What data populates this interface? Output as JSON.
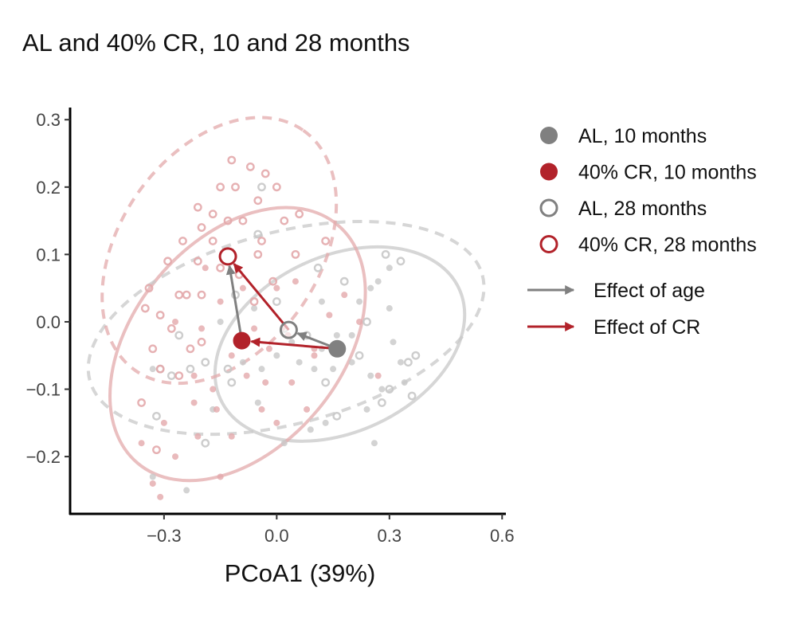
{
  "chart_data": {
    "type": "scatter",
    "title": "AL and 40% CR, 10 and 28 months",
    "xlabel": "PCoA1 (39%)",
    "ylabel": "",
    "xlim": [
      -0.55,
      0.61
    ],
    "ylim": [
      -0.285,
      0.318
    ],
    "xticks": [
      -0.3,
      0.0,
      0.3,
      0.6
    ],
    "xtick_labels": [
      "−0.3",
      "0.0",
      "0.3",
      "0.6"
    ],
    "yticks": [
      0.3,
      0.2,
      0.1,
      0.0,
      -0.1,
      -0.2
    ],
    "ytick_labels": [
      "0.3",
      "0.2",
      "0.1",
      "0.0",
      "−0.1",
      "−0.2"
    ],
    "grid": false,
    "legend_position": "right",
    "colors": {
      "AL": "#808080",
      "CR": "#b2222a"
    },
    "series": [
      {
        "name": "AL, 10 months",
        "group": "AL",
        "filled": true,
        "centroid": [
          0.161,
          -0.04
        ],
        "ellipse": {
          "center": [
            0.168,
            -0.033
          ],
          "a": 0.35,
          "b": 0.234,
          "angle": -25,
          "dashed": false
        },
        "points": [
          [
            0.12,
            -0.04
          ],
          [
            0.16,
            -0.02
          ],
          [
            0.2,
            -0.02
          ],
          [
            0.22,
            0.03
          ],
          [
            0.25,
            0.05
          ],
          [
            0.27,
            0.06
          ],
          [
            0.3,
            0.02
          ],
          [
            0.31,
            -0.03
          ],
          [
            0.33,
            -0.06
          ],
          [
            0.34,
            -0.09
          ],
          [
            0.28,
            -0.1
          ],
          [
            0.25,
            -0.08
          ],
          [
            0.2,
            -0.06
          ],
          [
            0.15,
            -0.07
          ],
          [
            0.1,
            -0.07
          ],
          [
            0.06,
            -0.06
          ],
          [
            0.04,
            -0.03
          ],
          [
            0.0,
            -0.05
          ],
          [
            -0.04,
            -0.07
          ],
          [
            -0.09,
            -0.06
          ],
          [
            -0.15,
            0.0
          ],
          [
            0.13,
            -0.15
          ],
          [
            0.09,
            -0.16
          ],
          [
            0.02,
            -0.18
          ],
          [
            -0.05,
            -0.12
          ],
          [
            -0.17,
            -0.13
          ],
          [
            -0.33,
            -0.23
          ],
          [
            -0.24,
            -0.25
          ],
          [
            0.26,
            -0.18
          ],
          [
            0.3,
            0.08
          ],
          [
            0.24,
            -0.13
          ],
          [
            -0.06,
            0.02
          ],
          [
            -0.33,
            -0.07
          ],
          [
            0.12,
            0.03
          ]
        ]
      },
      {
        "name": "40% CR, 10 months",
        "group": "CR",
        "filled": true,
        "centroid": [
          -0.093,
          -0.028
        ],
        "ellipse": {
          "center": [
            -0.104,
            -0.033
          ],
          "a": 0.414,
          "b": 0.276,
          "angle": -50,
          "dashed": false
        },
        "points": [
          [
            -0.27,
            0.0
          ],
          [
            -0.2,
            -0.01
          ],
          [
            -0.15,
            0.03
          ],
          [
            -0.12,
            -0.05
          ],
          [
            -0.06,
            -0.01
          ],
          [
            -0.02,
            -0.04
          ],
          [
            0.03,
            -0.02
          ],
          [
            -0.08,
            -0.08
          ],
          [
            -0.03,
            -0.09
          ],
          [
            -0.17,
            -0.1
          ],
          [
            -0.22,
            -0.08
          ],
          [
            -0.3,
            -0.15
          ],
          [
            -0.36,
            -0.18
          ],
          [
            -0.27,
            -0.2
          ],
          [
            -0.16,
            -0.13
          ],
          [
            -0.12,
            -0.17
          ],
          [
            -0.04,
            -0.13
          ],
          [
            0.0,
            -0.15
          ],
          [
            0.08,
            -0.13
          ],
          [
            -0.21,
            -0.17
          ],
          [
            0.04,
            -0.09
          ],
          [
            0.1,
            -0.04
          ],
          [
            0.14,
            0.01
          ],
          [
            0.22,
            0.0
          ],
          [
            0.18,
            0.04
          ],
          [
            -0.33,
            -0.24
          ],
          [
            -0.31,
            -0.26
          ],
          [
            -0.22,
            -0.12
          ],
          [
            0.1,
            -0.05
          ],
          [
            -0.09,
            0.05
          ],
          [
            -0.19,
            0.08
          ],
          [
            0.0,
            0.05
          ],
          [
            0.27,
            -0.08
          ],
          [
            -0.15,
            -0.23
          ],
          [
            0.05,
            0.06
          ]
        ]
      },
      {
        "name": "AL, 28 months",
        "group": "AL",
        "filled": false,
        "centroid": [
          0.032,
          -0.012
        ],
        "ellipse": {
          "center": [
            0.025,
            -0.009
          ],
          "a": 0.541,
          "b": 0.255,
          "angle": -15,
          "dashed": true
        },
        "points": [
          [
            -0.04,
            0.2
          ],
          [
            0.11,
            0.08
          ],
          [
            0.29,
            0.1
          ],
          [
            0.33,
            0.09
          ],
          [
            0.35,
            -0.06
          ],
          [
            0.3,
            -0.1
          ],
          [
            0.37,
            -0.05
          ],
          [
            0.24,
            0.0
          ],
          [
            0.22,
            -0.05
          ],
          [
            0.18,
            0.06
          ],
          [
            -0.05,
            0.13
          ],
          [
            -0.11,
            0.04
          ],
          [
            -0.13,
            -0.07
          ],
          [
            -0.19,
            -0.06
          ],
          [
            0.02,
            -0.01
          ],
          [
            0.08,
            -0.02
          ],
          [
            -0.31,
            -0.07
          ],
          [
            -0.26,
            -0.02
          ],
          [
            -0.28,
            -0.08
          ],
          [
            -0.32,
            -0.14
          ],
          [
            -0.19,
            -0.18
          ],
          [
            -0.12,
            -0.09
          ],
          [
            -0.23,
            -0.07
          ],
          [
            0.28,
            -0.12
          ],
          [
            0.16,
            -0.14
          ],
          [
            0.0,
            0.03
          ],
          [
            0.36,
            -0.11
          ],
          [
            0.13,
            -0.09
          ]
        ]
      },
      {
        "name": "40% CR, 28 months",
        "group": "CR",
        "filled": false,
        "centroid": [
          -0.13,
          0.097
        ],
        "ellipse": {
          "center": [
            -0.153,
            0.106
          ],
          "a": 0.39,
          "b": 0.265,
          "angle": -55,
          "dashed": true
        },
        "points": [
          [
            -0.12,
            0.24
          ],
          [
            -0.07,
            0.23
          ],
          [
            -0.03,
            0.22
          ],
          [
            -0.15,
            0.2
          ],
          [
            -0.21,
            0.17
          ],
          [
            -0.11,
            0.2
          ],
          [
            0.0,
            0.2
          ],
          [
            -0.05,
            0.18
          ],
          [
            -0.17,
            0.16
          ],
          [
            -0.09,
            0.15
          ],
          [
            0.02,
            0.15
          ],
          [
            0.06,
            0.16
          ],
          [
            -0.2,
            0.14
          ],
          [
            -0.13,
            0.15
          ],
          [
            -0.17,
            0.12
          ],
          [
            -0.25,
            0.12
          ],
          [
            -0.04,
            0.12
          ],
          [
            -0.21,
            0.09
          ],
          [
            -0.29,
            0.09
          ],
          [
            -0.1,
            0.07
          ],
          [
            -0.15,
            0.08
          ],
          [
            -0.24,
            0.04
          ],
          [
            -0.2,
            0.04
          ],
          [
            -0.26,
            0.04
          ],
          [
            -0.34,
            0.05
          ],
          [
            -0.31,
            0.01
          ],
          [
            -0.28,
            -0.01
          ],
          [
            -0.33,
            -0.04
          ],
          [
            -0.23,
            -0.04
          ],
          [
            -0.31,
            -0.07
          ],
          [
            -0.26,
            -0.08
          ],
          [
            -0.2,
            -0.03
          ],
          [
            0.13,
            0.12
          ],
          [
            -0.05,
            0.1
          ],
          [
            -0.36,
            -0.12
          ],
          [
            -0.32,
            -0.19
          ],
          [
            -0.06,
            0.03
          ],
          [
            -0.01,
            0.06
          ],
          [
            0.05,
            0.1
          ],
          [
            -0.35,
            0.02
          ]
        ]
      }
    ],
    "arrows": [
      {
        "name": "Effect of age",
        "group": "AL",
        "from": "AL, 10 months",
        "to": "AL, 28 months"
      },
      {
        "name": "Effect of age",
        "group": "AL",
        "from": "40% CR, 10 months",
        "to": "40% CR, 28 months"
      },
      {
        "name": "Effect of CR",
        "group": "CR",
        "from": "AL, 10 months",
        "to": "40% CR, 10 months"
      },
      {
        "name": "Effect of CR",
        "group": "CR",
        "from": "AL, 28 months",
        "to": "40% CR, 28 months"
      }
    ],
    "legend": {
      "points": [
        "AL, 10 months",
        "40% CR, 10 months",
        "AL, 28 months",
        "40% CR, 28 months"
      ],
      "arrows": [
        {
          "label": "Effect of age",
          "group": "AL"
        },
        {
          "label": "Effect of CR",
          "group": "CR"
        }
      ]
    }
  }
}
